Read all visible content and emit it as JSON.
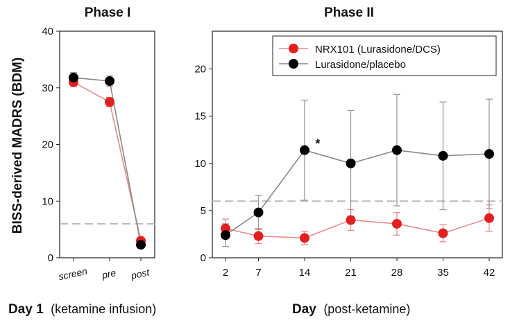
{
  "y_axis_label": "BISS-derived MADRS (BDM)",
  "colors": {
    "nrx": "#e02020",
    "nrx_line": "#e88a8a",
    "placebo": "#000000",
    "placebo_line": "#888888",
    "reference": "#bbbbbb",
    "errorbar_nrx": "#e88a8a",
    "errorbar_placebo": "#999999"
  },
  "chart_data": [
    {
      "id": "phase1",
      "type": "line",
      "title": "Phase I",
      "categories": [
        "screen",
        "pre",
        "post"
      ],
      "ylim": [
        0,
        40
      ],
      "yticks": [
        0,
        10,
        20,
        30,
        40
      ],
      "reference_line": 6,
      "xlabel_bold": "Day 1",
      "xlabel_rest": "(ketamine infusion)",
      "series": [
        {
          "name": "NRX101 (Lurasidone/DCS)",
          "values": [
            31,
            27.5,
            3
          ],
          "err": [
            0.8,
            0.8,
            0.6
          ]
        },
        {
          "name": "Lurasidone/placebo",
          "values": [
            31.8,
            31.2,
            2.3
          ],
          "err": [
            0.9,
            0.9,
            0.6
          ]
        }
      ]
    },
    {
      "id": "phase2",
      "type": "line",
      "title": "Phase II",
      "x": [
        2,
        7,
        14,
        21,
        28,
        35,
        42
      ],
      "xlim": [
        0,
        44
      ],
      "ylim": [
        0,
        24
      ],
      "yticks": [
        0,
        5,
        10,
        15,
        20
      ],
      "reference_line": 6,
      "xlabel_bold": "Day",
      "xlabel_rest": "(post-ketamine)",
      "annotation": {
        "text": "*",
        "x": 16,
        "y": 12.5
      },
      "legend": [
        "NRX101 (Lurasidone/DCS)",
        "Lurasidone/placebo"
      ],
      "series": [
        {
          "name": "NRX101 (Lurasidone/DCS)",
          "values": [
            3.1,
            2.3,
            2.1,
            4.0,
            3.6,
            2.6,
            4.2
          ],
          "err": [
            1.0,
            0.8,
            0.7,
            1.1,
            1.2,
            0.9,
            1.4
          ]
        },
        {
          "name": "Lurasidone/placebo",
          "values": [
            2.4,
            4.8,
            11.4,
            10.0,
            11.4,
            10.8,
            11.0
          ],
          "err": [
            1.2,
            1.8,
            5.3,
            5.6,
            5.9,
            5.7,
            5.8
          ]
        }
      ]
    }
  ]
}
